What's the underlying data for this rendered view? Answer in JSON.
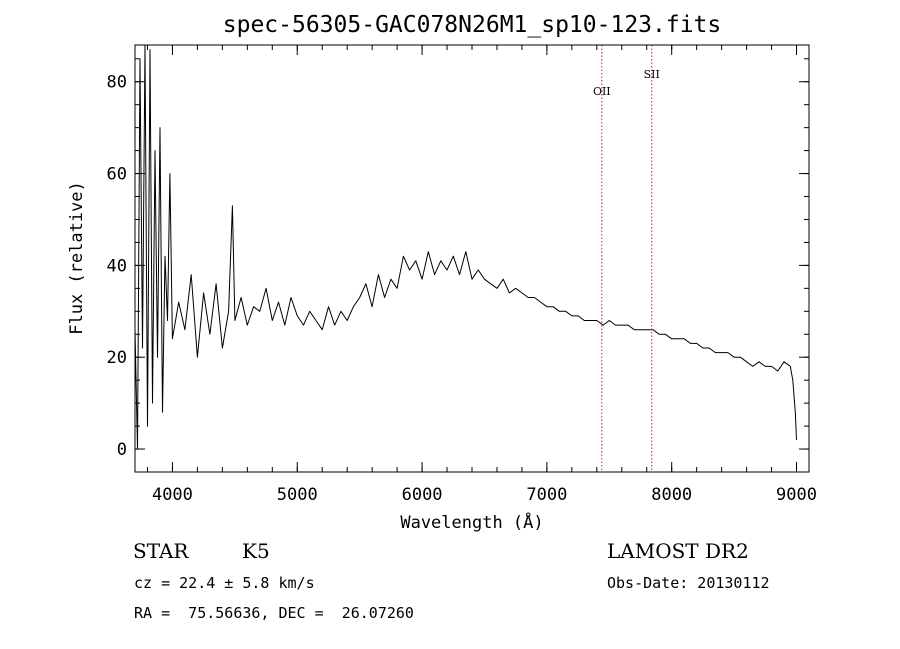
{
  "chart_data": {
    "type": "line",
    "title": "spec-56305-GAC078N26M1_sp10-123.fits",
    "xlabel": "Wavelength (Å)",
    "ylabel": "Flux (relative)",
    "xlim": [
      3700,
      9100
    ],
    "ylim": [
      -5,
      88
    ],
    "grid": false,
    "legend": "none",
    "xticks": [
      4000,
      5000,
      6000,
      7000,
      8000,
      9000
    ],
    "yticks": [
      0,
      20,
      40,
      60,
      80
    ],
    "x_minor_step": 200,
    "y_minor_step": 5,
    "series": [
      {
        "color": "#000000",
        "x": [
          3700,
          3720,
          3740,
          3760,
          3780,
          3800,
          3820,
          3840,
          3860,
          3880,
          3900,
          3920,
          3940,
          3960,
          3980,
          4000,
          4050,
          4100,
          4150,
          4200,
          4250,
          4300,
          4350,
          4400,
          4450,
          4480,
          4500,
          4550,
          4600,
          4650,
          4700,
          4750,
          4800,
          4850,
          4900,
          4950,
          5000,
          5050,
          5100,
          5150,
          5200,
          5250,
          5300,
          5350,
          5400,
          5450,
          5500,
          5550,
          5600,
          5650,
          5700,
          5750,
          5800,
          5850,
          5900,
          5950,
          6000,
          6050,
          6100,
          6150,
          6200,
          6250,
          6300,
          6350,
          6400,
          6450,
          6500,
          6550,
          6600,
          6650,
          6700,
          6750,
          6800,
          6850,
          6900,
          6950,
          7000,
          7050,
          7100,
          7150,
          7200,
          7250,
          7300,
          7350,
          7400,
          7450,
          7500,
          7550,
          7600,
          7650,
          7700,
          7750,
          7800,
          7850,
          7900,
          7950,
          8000,
          8050,
          8100,
          8150,
          8200,
          8250,
          8300,
          8350,
          8400,
          8450,
          8500,
          8550,
          8600,
          8650,
          8700,
          8750,
          8800,
          8850,
          8900,
          8950,
          8970,
          8990,
          9000
        ],
        "y": [
          26,
          0,
          85,
          22,
          88,
          5,
          87,
          10,
          65,
          20,
          70,
          8,
          42,
          28,
          60,
          24,
          32,
          26,
          38,
          20,
          34,
          25,
          36,
          22,
          30,
          53,
          28,
          33,
          27,
          31,
          30,
          35,
          28,
          32,
          27,
          33,
          29,
          27,
          30,
          28,
          26,
          31,
          27,
          30,
          28,
          31,
          33,
          36,
          31,
          38,
          33,
          37,
          35,
          42,
          39,
          41,
          37,
          43,
          38,
          41,
          39,
          42,
          38,
          43,
          37,
          39,
          37,
          36,
          35,
          37,
          34,
          35,
          34,
          33,
          33,
          32,
          31,
          31,
          30,
          30,
          29,
          29,
          28,
          28,
          28,
          27,
          28,
          27,
          27,
          27,
          26,
          26,
          26,
          26,
          25,
          25,
          24,
          24,
          24,
          23,
          23,
          22,
          22,
          21,
          21,
          21,
          20,
          20,
          19,
          18,
          19,
          18,
          18,
          17,
          19,
          18,
          15,
          8,
          2
        ]
      }
    ],
    "annotations": [
      {
        "label": "OII",
        "x": 7440
      },
      {
        "label": "SII",
        "x": 7840
      }
    ]
  },
  "info": {
    "object_type": "STAR",
    "subclass": "K5",
    "survey": "LAMOST DR2",
    "redshift": "cz = 22.4 ± 5.8 km/s",
    "obs_date": "Obs-Date: 20130112",
    "coords": "RA =  75.56636, DEC =  26.07260"
  }
}
